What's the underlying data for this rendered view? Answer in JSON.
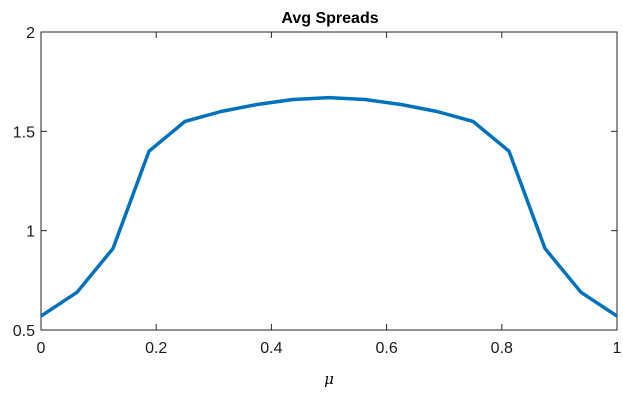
{
  "chart_data": {
    "type": "line",
    "title": "Avg Spreads",
    "xlabel": "μ",
    "ylabel": "",
    "xlim": [
      0,
      1
    ],
    "ylim": [
      0.5,
      2
    ],
    "x_ticks": [
      "0",
      "0.2",
      "0.4",
      "0.6",
      "0.8",
      "1"
    ],
    "y_ticks": [
      "0.5",
      "1",
      "1.5",
      "2"
    ],
    "grid": false,
    "series": [
      {
        "color": "#0072bd",
        "x": [
          0.0,
          0.0625,
          0.125,
          0.1875,
          0.25,
          0.3125,
          0.375,
          0.4375,
          0.5,
          0.5625,
          0.625,
          0.6875,
          0.75,
          0.8125,
          0.875,
          0.9375,
          1.0
        ],
        "y": [
          0.57,
          0.69,
          0.91,
          1.4,
          1.55,
          1.6,
          1.635,
          1.66,
          1.67,
          1.66,
          1.635,
          1.6,
          1.55,
          1.4,
          0.91,
          0.69,
          0.57
        ]
      }
    ]
  }
}
